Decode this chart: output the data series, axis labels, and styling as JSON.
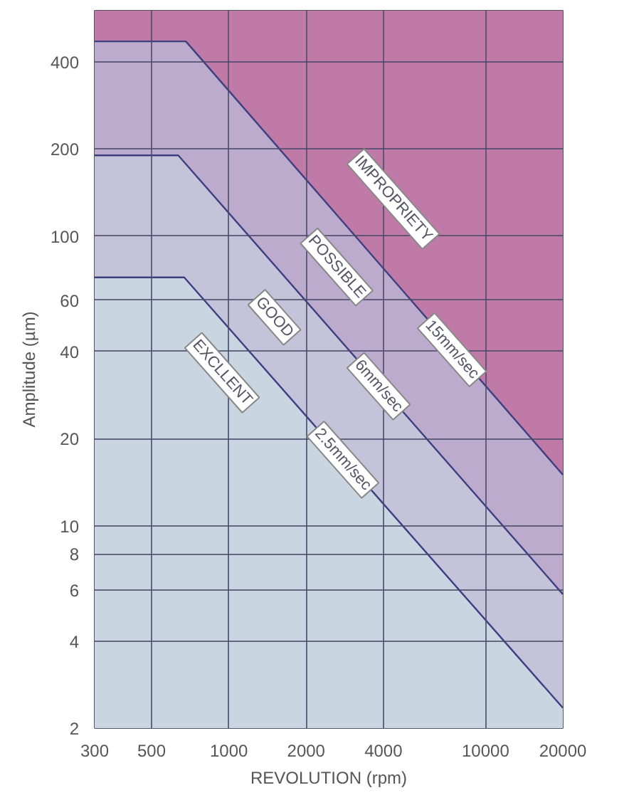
{
  "chart_data": {
    "type": "area",
    "xlabel": "REVOLUTION (rpm)",
    "ylabel": "Amplitude (µm)",
    "log": "xy",
    "xlim": [
      300,
      20000
    ],
    "ylim": [
      2,
      600
    ],
    "xticks": [
      300,
      500,
      1000,
      2000,
      4000,
      10000,
      20000
    ],
    "yticks": [
      2,
      4,
      6,
      8,
      10,
      20,
      40,
      60,
      100,
      200,
      400
    ],
    "grid": true,
    "bands": [
      {
        "axis": "y",
        "from": 2,
        "to": 600,
        "color": "#c07aa8",
        "label": "IMPROPRIETY"
      }
    ],
    "series": [
      {
        "name": "POSSIBLE",
        "color": "#bcabcd",
        "x": [
          300,
          680,
          20000
        ],
        "values": [
          470,
          470,
          15
        ]
      },
      {
        "name": "GOOD",
        "color": "#c4c3da",
        "x": [
          300,
          635,
          20000
        ],
        "values": [
          190,
          190,
          5.8
        ]
      },
      {
        "name": "EXCLLENT",
        "color": "#c9d6e1",
        "x": [
          300,
          670,
          20000
        ],
        "values": [
          72,
          72,
          2.35
        ]
      }
    ],
    "annotations": [
      {
        "text": "15mm/sec",
        "x": 7400,
        "y": 40.5
      },
      {
        "text": "6mm/sec",
        "x": 3830,
        "y": 30.3
      },
      {
        "text": "2.5mm/sec",
        "x": 2780,
        "y": 16.9
      }
    ]
  }
}
